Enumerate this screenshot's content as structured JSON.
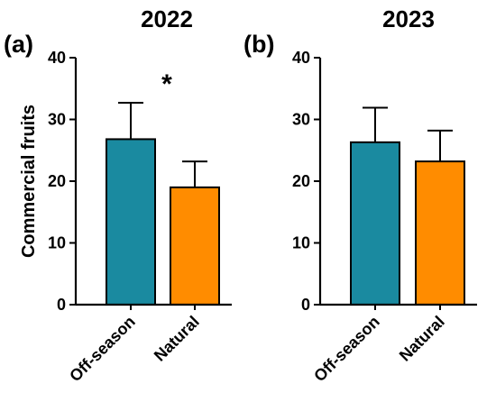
{
  "chart_data": [
    {
      "type": "bar",
      "panel_label": "(a)",
      "title": "2022",
      "ylabel": "Commercial fruits",
      "xlabel": "",
      "ylim": [
        0,
        40
      ],
      "yticks": [
        0,
        10,
        20,
        30,
        40
      ],
      "categories": [
        "Off-season",
        "Natural"
      ],
      "values": [
        26.8,
        19.0
      ],
      "error_plus": [
        5.9,
        4.2
      ],
      "colors": [
        "#1a8aa0",
        "#ff8c00"
      ],
      "annotation": "*"
    },
    {
      "type": "bar",
      "panel_label": "(b)",
      "title": "2023",
      "ylabel": "",
      "xlabel": "",
      "ylim": [
        0,
        40
      ],
      "yticks": [
        0,
        10,
        20,
        30,
        40
      ],
      "categories": [
        "Off-season",
        "Natural"
      ],
      "values": [
        26.3,
        23.2
      ],
      "error_plus": [
        5.6,
        5.0
      ],
      "colors": [
        "#1a8aa0",
        "#ff8c00"
      ],
      "annotation": ""
    }
  ]
}
